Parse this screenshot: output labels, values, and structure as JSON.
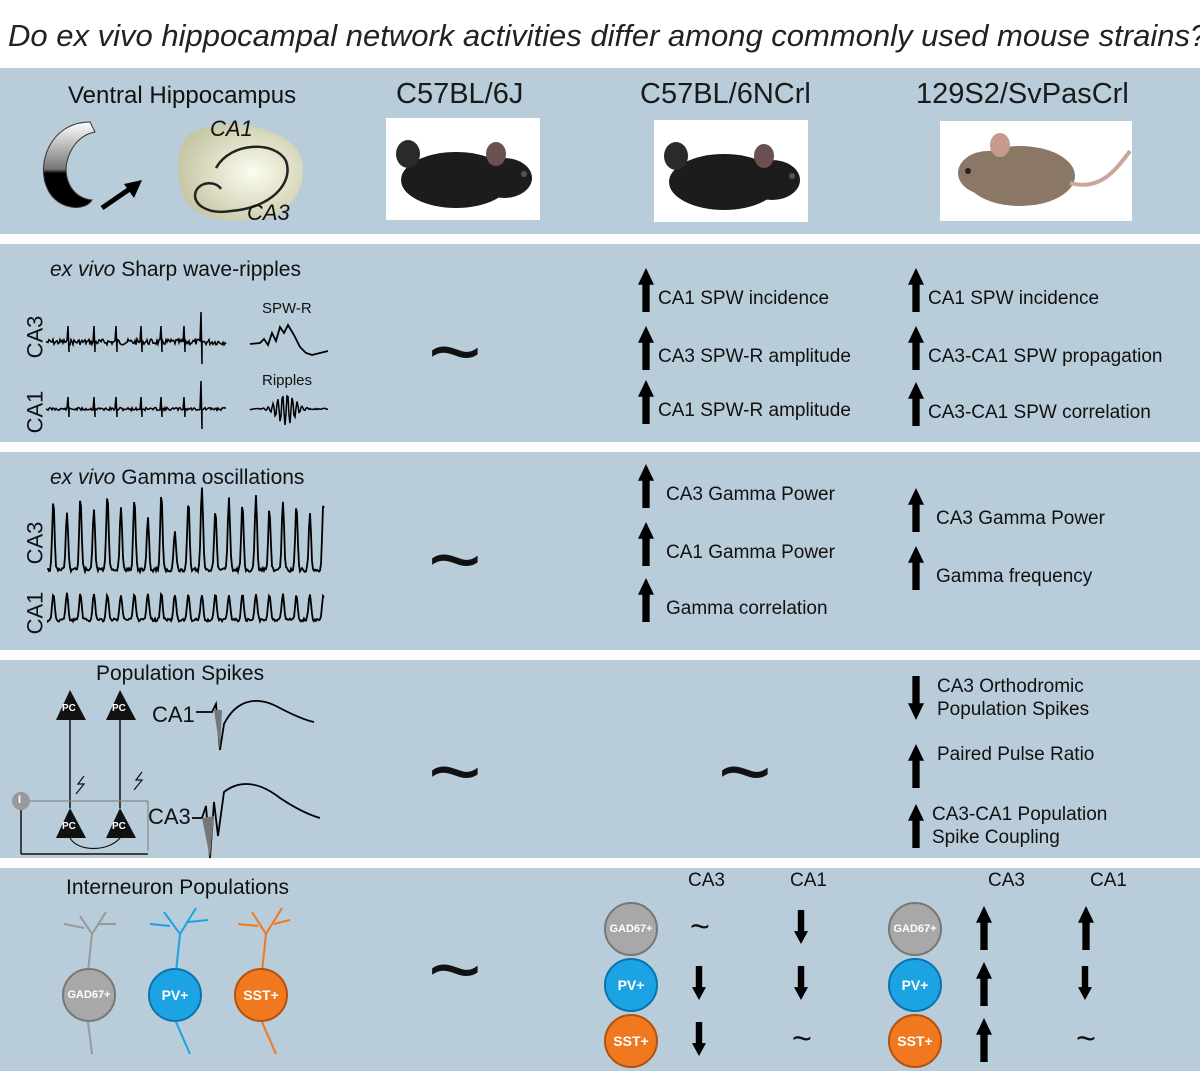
{
  "title": "Do ex vivo hippocampal network activities differ among commonly used mouse strains?",
  "header": {
    "anatomy_label": "Ventral Hippocampus",
    "ca1_label": "CA1",
    "ca3_label": "CA3",
    "strains": [
      "C57BL/6J",
      "C57BL/6NCrl",
      "129S2/SvPasCrl"
    ]
  },
  "swr": {
    "title_italic": "ex vivo",
    "title_rest": " Sharp wave-ripples",
    "trace_labels": [
      "CA3",
      "CA1"
    ],
    "inset_labels": [
      "SPW-R",
      "Ripples"
    ],
    "c57j": "~",
    "c57n": [
      "CA1 SPW incidence",
      "CA3 SPW-R amplitude",
      "CA1 SPW-R amplitude"
    ],
    "s129": [
      "CA1 SPW incidence",
      "CA3-CA1 SPW propagation",
      "CA3-CA1 SPW correlation"
    ]
  },
  "gamma": {
    "title_italic": "ex vivo",
    "title_rest": " Gamma oscillations",
    "trace_labels": [
      "CA3",
      "CA1"
    ],
    "c57j": "~",
    "c57n": [
      "CA3 Gamma Power",
      "CA1 Gamma Power",
      "Gamma correlation"
    ],
    "s129": [
      "CA3 Gamma Power",
      "Gamma frequency"
    ]
  },
  "popspikes": {
    "title": "Population Spikes",
    "pc_label": "PC",
    "interneuron_label": "I",
    "trace_labels": [
      "CA1",
      "CA3"
    ],
    "c57j": "~",
    "c57n": "~",
    "s129": [
      {
        "dir": "down",
        "lines": [
          "CA3 Orthodromic",
          "Population Spikes"
        ]
      },
      {
        "dir": "up",
        "lines": [
          "Paired Pulse Ratio"
        ]
      },
      {
        "dir": "up",
        "lines": [
          "CA3-CA1 Population",
          "Spike Coupling"
        ]
      }
    ]
  },
  "interneurons": {
    "title": "Interneuron Populations",
    "cells": [
      "GAD67+",
      "PV+",
      "SST+"
    ],
    "colors": {
      "gad67": "#a8a8a8",
      "pv": "#1ca3e4",
      "sst": "#f0781e"
    },
    "c57j": "~",
    "col_headers": [
      "CA3",
      "CA1"
    ],
    "c57n": {
      "GAD67+": [
        "~",
        "down"
      ],
      "PV+": [
        "down",
        "down"
      ],
      "SST+": [
        "down",
        "~"
      ]
    },
    "s129": {
      "GAD67+": [
        "up",
        "up"
      ],
      "PV+": [
        "up",
        "down"
      ],
      "SST+": [
        "up",
        "~"
      ]
    }
  }
}
